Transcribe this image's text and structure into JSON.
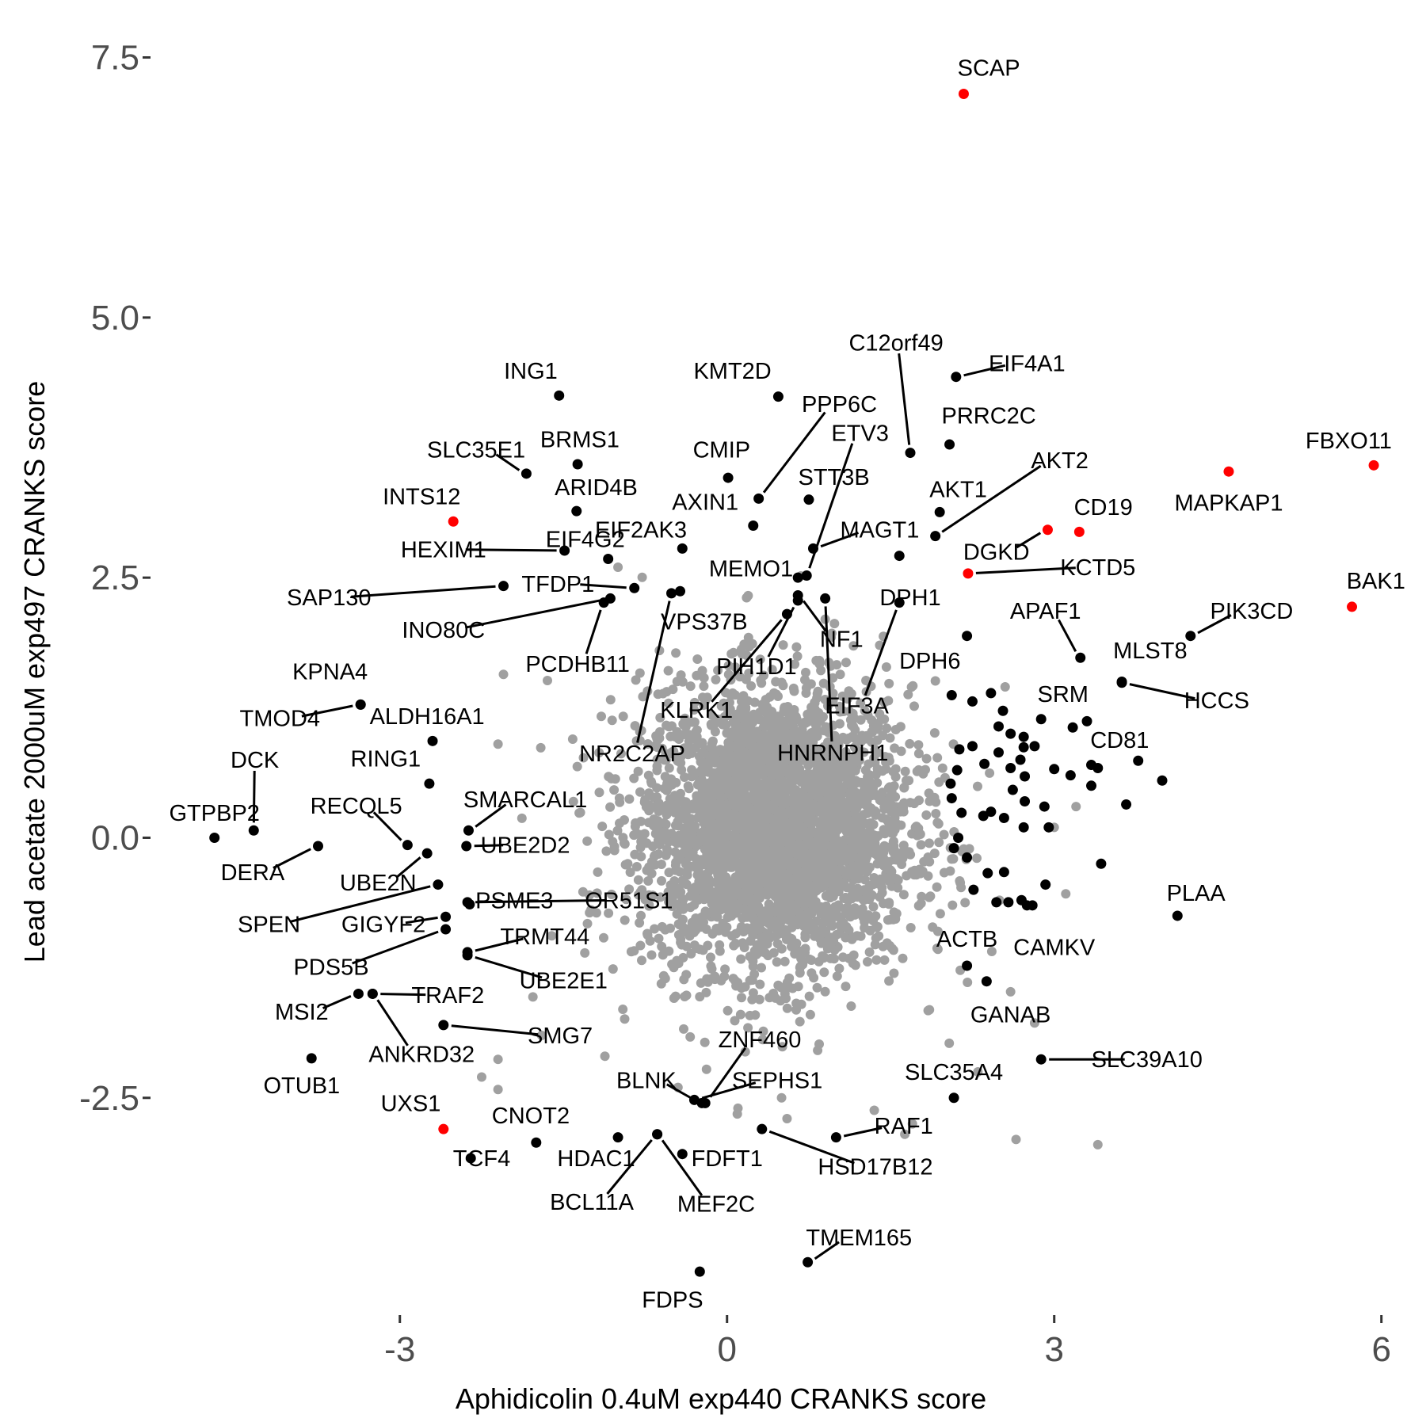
{
  "chart_data": {
    "type": "scatter",
    "xlabel": "Aphidicolin 0.4uM exp440 CRANKS score",
    "ylabel": "Lead acetate 2000uM exp497 CRANKS score",
    "xlim": [
      -5.25,
      6.3
    ],
    "ylim": [
      -4.55,
      7.9
    ],
    "x_ticks": [
      -3,
      0,
      3,
      6
    ],
    "x_tick_labels": [
      "-3",
      "0",
      "3",
      "6"
    ],
    "y_ticks": [
      -2.5,
      0,
      2.5,
      5,
      7.5
    ],
    "y_tick_labels": [
      "-2.5",
      "0.0",
      "2.5",
      "5.0",
      "7.5"
    ],
    "grid": false,
    "legend": "none",
    "colors": {
      "background_points": "#a0a0a0",
      "hit_points": "#000000",
      "highlight_points": "#ff0000",
      "axis_text": "#4d4d4d"
    },
    "labeled_points": [
      {
        "name": "SCAP",
        "x": 2.17,
        "y": 7.15,
        "color": "red",
        "lx": 2.4,
        "ly": 7.4
      },
      {
        "name": "FBXO11",
        "x": 5.93,
        "y": 3.58,
        "color": "red",
        "lx": 5.7,
        "ly": 3.82
      },
      {
        "name": "MAPKAP1",
        "x": 4.6,
        "y": 3.52,
        "color": "red",
        "lx": 4.6,
        "ly": 3.22
      },
      {
        "name": "BAK1",
        "x": 5.73,
        "y": 2.22,
        "color": "red",
        "lx": 5.95,
        "ly": 2.47
      },
      {
        "name": "INTS12",
        "x": -2.51,
        "y": 3.04,
        "color": "red",
        "lx": -2.8,
        "ly": 3.28
      },
      {
        "name": "CD19",
        "x": 3.23,
        "y": 2.94,
        "color": "red",
        "lx": 3.45,
        "ly": 3.18
      },
      {
        "name": "DGKD",
        "x": 2.94,
        "y": 2.96,
        "color": "red",
        "lx": 2.47,
        "ly": 2.75
      },
      {
        "name": "KCTD5",
        "x": 2.21,
        "y": 2.54,
        "color": "red",
        "lx": 3.4,
        "ly": 2.6
      },
      {
        "name": "UXS1",
        "x": -2.6,
        "y": -2.8,
        "color": "red",
        "lx": -2.9,
        "ly": -2.55
      },
      {
        "name": "ING1",
        "x": -1.54,
        "y": 4.25,
        "color": "black",
        "lx": -1.8,
        "ly": 4.49
      },
      {
        "name": "KMT2D",
        "x": 0.47,
        "y": 4.24,
        "color": "black",
        "lx": 0.05,
        "ly": 4.49
      },
      {
        "name": "C12orf49",
        "x": 1.68,
        "y": 3.7,
        "color": "black",
        "lx": 1.55,
        "ly": 4.76
      },
      {
        "name": "EIF4A1",
        "x": 2.1,
        "y": 4.43,
        "color": "black",
        "lx": 2.75,
        "ly": 4.56
      },
      {
        "name": "PRRC2C",
        "x": 2.04,
        "y": 3.78,
        "color": "black",
        "lx": 2.4,
        "ly": 4.06
      },
      {
        "name": "SLC35E1",
        "x": -1.84,
        "y": 3.5,
        "color": "black",
        "lx": -2.3,
        "ly": 3.73
      },
      {
        "name": "BRMS1",
        "x": -1.37,
        "y": 3.59,
        "color": "black",
        "lx": -1.35,
        "ly": 3.83
      },
      {
        "name": "CMIP",
        "x": 0.01,
        "y": 3.46,
        "color": "black",
        "lx": -0.05,
        "ly": 3.73
      },
      {
        "name": "ETV3",
        "x": 0.73,
        "y": 2.52,
        "color": "black",
        "lx": 1.22,
        "ly": 3.89
      },
      {
        "name": "AKT2",
        "x": 1.91,
        "y": 2.9,
        "color": "black",
        "lx": 3.05,
        "ly": 3.63
      },
      {
        "name": "ARID4B",
        "x": -1.38,
        "y": 3.14,
        "color": "black",
        "lx": -1.2,
        "ly": 3.37
      },
      {
        "name": "STT3B",
        "x": 0.75,
        "y": 3.25,
        "color": "black",
        "lx": 0.98,
        "ly": 3.47
      },
      {
        "name": "AXIN1",
        "x": 0.24,
        "y": 3.0,
        "color": "black",
        "lx": -0.2,
        "ly": 3.23
      },
      {
        "name": "AKT1",
        "x": 1.95,
        "y": 3.13,
        "color": "black",
        "lx": 2.12,
        "ly": 3.35
      },
      {
        "name": "PPP6C",
        "x": 0.29,
        "y": 3.26,
        "color": "black",
        "lx": 1.03,
        "ly": 4.17
      },
      {
        "name": "EIF2AK3",
        "x": -0.41,
        "y": 2.78,
        "color": "black",
        "lx": -0.79,
        "ly": 2.96
      },
      {
        "name": "MAGT1",
        "x": 0.79,
        "y": 2.78,
        "color": "black",
        "lx": 1.4,
        "ly": 2.96
      },
      {
        "name": "HEXIM1",
        "x": -1.49,
        "y": 2.76,
        "color": "black",
        "lx": -2.6,
        "ly": 2.77
      },
      {
        "name": "EIF4G2",
        "x": -1.09,
        "y": 2.68,
        "color": "black",
        "lx": -1.3,
        "ly": 2.87
      },
      {
        "name": "MEMO1",
        "x": 0.65,
        "y": 2.5,
        "color": "black",
        "lx": 0.22,
        "ly": 2.59
      },
      {
        "name": "TFDP1",
        "x": -0.85,
        "y": 2.4,
        "color": "black",
        "lx": -1.55,
        "ly": 2.44
      },
      {
        "name": "SAP130",
        "x": -2.05,
        "y": 2.42,
        "color": "black",
        "lx": -3.65,
        "ly": 2.31
      },
      {
        "name": "DPH1",
        "x": 1.58,
        "y": 2.71,
        "color": "black",
        "lx": 1.68,
        "ly": 2.31
      },
      {
        "name": "INO80C",
        "x": -1.07,
        "y": 2.3,
        "color": "black",
        "lx": -2.6,
        "ly": 2.0
      },
      {
        "name": "APAF1",
        "x": 3.24,
        "y": 1.73,
        "color": "black",
        "lx": 2.92,
        "ly": 2.18
      },
      {
        "name": "PIK3CD",
        "x": 4.25,
        "y": 1.94,
        "color": "black",
        "lx": 4.81,
        "ly": 2.18
      },
      {
        "name": "VPS37B",
        "x": -0.43,
        "y": 2.37,
        "color": "black",
        "lx": -0.21,
        "ly": 2.08
      },
      {
        "name": "NF1",
        "x": 0.65,
        "y": 2.33,
        "color": "black",
        "lx": 1.05,
        "ly": 1.91
      },
      {
        "name": "MLST8",
        "x": 3.62,
        "y": 1.5,
        "color": "black",
        "lx": 3.88,
        "ly": 1.8
      },
      {
        "name": "PCDHB11",
        "x": -1.13,
        "y": 2.26,
        "color": "black",
        "lx": -1.37,
        "ly": 1.67
      },
      {
        "name": "PIH1D1",
        "x": 0.65,
        "y": 2.28,
        "color": "black",
        "lx": 0.27,
        "ly": 1.65
      },
      {
        "name": "DPH6",
        "x": 2.2,
        "y": 1.94,
        "color": "black",
        "lx": 1.86,
        "ly": 1.7
      },
      {
        "name": "SRM",
        "x": 3.3,
        "y": 1.12,
        "color": "black",
        "lx": 3.08,
        "ly": 1.38
      },
      {
        "name": "HCCS",
        "x": 3.62,
        "y": 1.49,
        "color": "black",
        "lx": 4.49,
        "ly": 1.32
      },
      {
        "name": "KPNA4",
        "x": -3.36,
        "y": 1.28,
        "color": "black",
        "lx": -3.64,
        "ly": 1.6
      },
      {
        "name": "KLRK1",
        "x": 0.55,
        "y": 2.15,
        "color": "black",
        "lx": -0.28,
        "ly": 1.23
      },
      {
        "name": "EIF3A",
        "x": 1.58,
        "y": 2.26,
        "color": "black",
        "lx": 1.19,
        "ly": 1.27
      },
      {
        "name": "TMOD4",
        "x": -3.36,
        "y": 1.28,
        "color": "black",
        "lx": -4.1,
        "ly": 1.15
      },
      {
        "name": "ALDH16A1",
        "x": -2.7,
        "y": 0.93,
        "color": "black",
        "lx": -2.75,
        "ly": 1.17
      },
      {
        "name": "CD81",
        "x": 3.4,
        "y": 0.67,
        "color": "black",
        "lx": 3.6,
        "ly": 0.94
      },
      {
        "name": "NR2C2AP",
        "x": -0.51,
        "y": 2.35,
        "color": "black",
        "lx": -0.87,
        "ly": 0.81
      },
      {
        "name": "HNRNPH1",
        "x": 0.9,
        "y": 2.3,
        "color": "black",
        "lx": 0.97,
        "ly": 0.82
      },
      {
        "name": "RING1",
        "x": -2.73,
        "y": 0.52,
        "color": "black",
        "lx": -3.13,
        "ly": 0.76
      },
      {
        "name": "DCK",
        "x": -4.34,
        "y": 0.07,
        "color": "black",
        "lx": -4.33,
        "ly": 0.75
      },
      {
        "name": "SMARCAL1",
        "x": -2.37,
        "y": 0.07,
        "color": "black",
        "lx": -1.85,
        "ly": 0.37
      },
      {
        "name": "RECQL5",
        "x": -2.93,
        "y": -0.07,
        "color": "black",
        "lx": -3.4,
        "ly": 0.31
      },
      {
        "name": "GTPBP2",
        "x": -4.7,
        "y": 0.0,
        "color": "black",
        "lx": -4.7,
        "ly": 0.24
      },
      {
        "name": "UBE2D2",
        "x": -2.39,
        "y": -0.08,
        "color": "black",
        "lx": -1.85,
        "ly": -0.07
      },
      {
        "name": "DERA",
        "x": -3.75,
        "y": -0.08,
        "color": "black",
        "lx": -4.35,
        "ly": -0.33
      },
      {
        "name": "UBE2N",
        "x": -2.75,
        "y": -0.15,
        "color": "black",
        "lx": -3.2,
        "ly": -0.43
      },
      {
        "name": "PSME3",
        "x": -2.36,
        "y": -0.64,
        "color": "black",
        "lx": -1.95,
        "ly": -0.6
      },
      {
        "name": "OR51S1",
        "x": -2.38,
        "y": -0.62,
        "color": "black",
        "lx": -0.9,
        "ly": -0.6
      },
      {
        "name": "PLAA",
        "x": 4.13,
        "y": -0.75,
        "color": "black",
        "lx": 4.3,
        "ly": -0.53
      },
      {
        "name": "SPEN",
        "x": -2.65,
        "y": -0.45,
        "color": "black",
        "lx": -4.2,
        "ly": -0.83
      },
      {
        "name": "GIGYF2",
        "x": -2.58,
        "y": -0.76,
        "color": "black",
        "lx": -3.15,
        "ly": -0.83
      },
      {
        "name": "TRMT44",
        "x": -2.38,
        "y": -1.1,
        "color": "black",
        "lx": -1.67,
        "ly": -0.95
      },
      {
        "name": "ACTB",
        "x": 2.2,
        "y": -1.23,
        "color": "black",
        "lx": 2.2,
        "ly": -0.97
      },
      {
        "name": "CAMKV",
        "x": 2.8,
        "y": -0.65,
        "color": "black",
        "lx": 3.0,
        "ly": -1.05
      },
      {
        "name": "PDS5B",
        "x": -2.58,
        "y": -0.88,
        "color": "black",
        "lx": -3.63,
        "ly": -1.24
      },
      {
        "name": "UBE2E1",
        "x": -2.38,
        "y": -1.13,
        "color": "black",
        "lx": -1.5,
        "ly": -1.37
      },
      {
        "name": "TRAF2",
        "x": -3.25,
        "y": -1.5,
        "color": "black",
        "lx": -2.56,
        "ly": -1.51
      },
      {
        "name": "MSI2",
        "x": -3.38,
        "y": -1.5,
        "color": "black",
        "lx": -3.9,
        "ly": -1.67
      },
      {
        "name": "GANAB",
        "x": 2.38,
        "y": -1.38,
        "color": "black",
        "lx": 2.6,
        "ly": -1.7
      },
      {
        "name": "SMG7",
        "x": -2.6,
        "y": -1.8,
        "color": "black",
        "lx": -1.53,
        "ly": -1.9
      },
      {
        "name": "ZNF460",
        "x": -0.2,
        "y": -2.55,
        "color": "black",
        "lx": 0.3,
        "ly": -1.94
      },
      {
        "name": "ANKRD32",
        "x": -3.25,
        "y": -1.5,
        "color": "black",
        "lx": -2.8,
        "ly": -2.08
      },
      {
        "name": "SLC39A10",
        "x": 2.88,
        "y": -2.13,
        "color": "black",
        "lx": 3.85,
        "ly": -2.13
      },
      {
        "name": "OTUB1",
        "x": -3.81,
        "y": -2.12,
        "color": "black",
        "lx": -3.9,
        "ly": -2.38
      },
      {
        "name": "SLC35A4",
        "x": 2.08,
        "y": -2.5,
        "color": "black",
        "lx": 2.08,
        "ly": -2.25
      },
      {
        "name": "BLNK",
        "x": -0.23,
        "y": -2.55,
        "color": "black",
        "lx": -0.74,
        "ly": -2.33
      },
      {
        "name": "SEPHS1",
        "x": -0.3,
        "y": -2.52,
        "color": "black",
        "lx": 0.46,
        "ly": -2.33
      },
      {
        "name": "CNOT2",
        "x": -1.75,
        "y": -2.93,
        "color": "black",
        "lx": -1.8,
        "ly": -2.67
      },
      {
        "name": "RAF1",
        "x": 1.0,
        "y": -2.88,
        "color": "black",
        "lx": 1.62,
        "ly": -2.77
      },
      {
        "name": "TCF4",
        "x": -2.35,
        "y": -3.08,
        "color": "black",
        "lx": -2.25,
        "ly": -3.08
      },
      {
        "name": "HDAC1",
        "x": -1.0,
        "y": -2.88,
        "color": "black",
        "lx": -1.2,
        "ly": -3.08
      },
      {
        "name": "FDFT1",
        "x": -0.41,
        "y": -3.04,
        "color": "black",
        "lx": 0.0,
        "ly": -3.08
      },
      {
        "name": "HSD17B12",
        "x": 0.32,
        "y": -2.8,
        "color": "black",
        "lx": 1.36,
        "ly": -3.16
      },
      {
        "name": "BCL11A",
        "x": -0.64,
        "y": -2.85,
        "color": "black",
        "lx": -1.24,
        "ly": -3.5
      },
      {
        "name": "MEF2C",
        "x": -0.64,
        "y": -2.85,
        "color": "black",
        "lx": -0.1,
        "ly": -3.52
      },
      {
        "name": "TMEM165",
        "x": 0.74,
        "y": -4.08,
        "color": "black",
        "lx": 1.21,
        "ly": -3.84
      },
      {
        "name": "FDPS",
        "x": -0.25,
        "y": -4.17,
        "color": "black",
        "lx": -0.5,
        "ly": -4.44
      }
    ],
    "unlabeled_hits": [
      [
        2.06,
        1.37
      ],
      [
        2.25,
        1.31
      ],
      [
        2.42,
        1.39
      ],
      [
        2.53,
        1.22
      ],
      [
        2.49,
        1.07
      ],
      [
        2.6,
        1.0
      ],
      [
        2.72,
        0.97
      ],
      [
        2.72,
        0.87
      ],
      [
        2.49,
        0.82
      ],
      [
        2.6,
        0.67
      ],
      [
        2.69,
        0.75
      ],
      [
        2.73,
        0.59
      ],
      [
        2.25,
        0.88
      ],
      [
        2.36,
        0.71
      ],
      [
        2.11,
        0.65
      ],
      [
        2.05,
        0.52
      ],
      [
        2.06,
        0.38
      ],
      [
        2.62,
        0.46
      ],
      [
        2.73,
        0.35
      ],
      [
        2.15,
        0.24
      ],
      [
        2.35,
        0.21
      ],
      [
        2.54,
        0.19
      ],
      [
        2.72,
        0.1
      ],
      [
        2.95,
        0.1
      ],
      [
        2.91,
        0.3
      ],
      [
        3.15,
        0.6
      ],
      [
        3.0,
        0.66
      ],
      [
        3.34,
        0.7
      ],
      [
        3.34,
        0.5
      ],
      [
        3.66,
        0.32
      ],
      [
        3.77,
        0.74
      ],
      [
        3.99,
        0.55
      ],
      [
        3.43,
        -0.25
      ],
      [
        3.17,
        1.06
      ],
      [
        2.88,
        1.14
      ],
      [
        2.12,
        0.0
      ],
      [
        2.2,
        -0.19
      ],
      [
        2.39,
        -0.34
      ],
      [
        2.54,
        -0.33
      ],
      [
        2.26,
        -0.5
      ],
      [
        2.47,
        -0.62
      ],
      [
        2.58,
        -0.62
      ],
      [
        2.7,
        -0.6
      ],
      [
        2.75,
        -0.65
      ],
      [
        2.92,
        -0.45
      ],
      [
        2.08,
        -0.1
      ],
      [
        2.13,
        0.85
      ],
      [
        2.42,
        0.25
      ],
      [
        2.82,
        0.88
      ]
    ],
    "background_count": 3400,
    "background_extra": [
      [
        -2.05,
        1.57
      ],
      [
        -2.1,
        0.9
      ],
      [
        -1.78,
        -1.53
      ],
      [
        -2.1,
        -2.13
      ],
      [
        -2.1,
        -2.42
      ],
      [
        -1.7,
        -1.9
      ],
      [
        0.9,
        2.1
      ],
      [
        1.4,
        1.85
      ],
      [
        2.6,
        -1.48
      ],
      [
        2.3,
        -2.25
      ],
      [
        1.35,
        -2.62
      ],
      [
        0.1,
        -2.6
      ],
      [
        3.0,
        0.1
      ],
      [
        -0.62,
        1.8
      ],
      [
        0.5,
        -2.5
      ],
      [
        -1.0,
        2.6
      ],
      [
        2.55,
        1.45
      ],
      [
        3.2,
        0.3
      ],
      [
        2.65,
        -2.9
      ],
      [
        -2.25,
        -2.3
      ],
      [
        2.82,
        -1.78
      ],
      [
        -1.12,
        -2.1
      ],
      [
        1.63,
        -2.85
      ],
      [
        3.4,
        -2.95
      ],
      [
        1.7,
        -2.75
      ],
      [
        0.55,
        -2.7
      ],
      [
        -0.45,
        -2.4
      ]
    ]
  }
}
